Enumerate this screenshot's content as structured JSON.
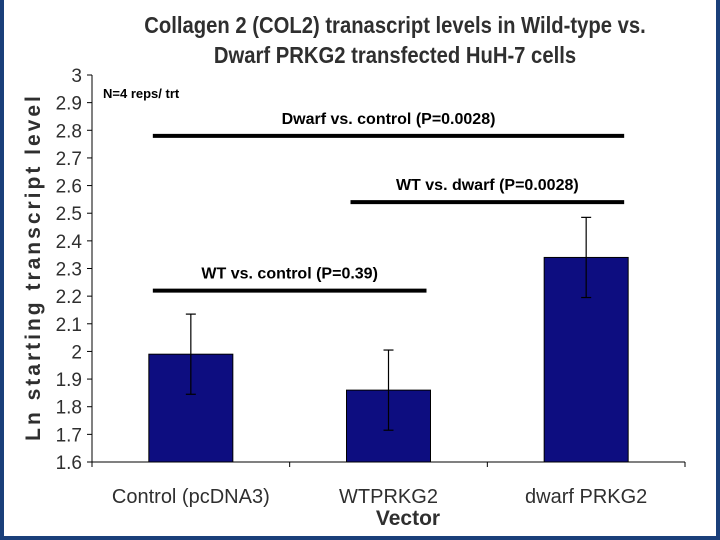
{
  "chart_data": {
    "type": "bar",
    "title": "Collagen 2 (COL2) tranascript levels in Wild-type vs. Dwarf PRKG2 transfected HuH-7 cells",
    "xlabel": "Vector",
    "ylabel": "Ln starting transcript level",
    "categories": [
      "Control (pcDNA3)",
      "WTPRKG2",
      "dwarf PRKG2"
    ],
    "values": [
      1.99,
      1.86,
      2.34
    ],
    "error": [
      0.145,
      0.145,
      0.145
    ],
    "ylim": [
      1.6,
      3.0
    ],
    "yticks": [
      "1.6",
      "1.7",
      "1.8",
      "1.9",
      "2",
      "2.1",
      "2.2",
      "2.3",
      "2.4",
      "2.5",
      "2.6",
      "2.7",
      "2.8",
      "2.9",
      "3"
    ],
    "grid": false,
    "bar_color": "#0d0d80",
    "note": "N=4 reps/ trt",
    "comparisons": [
      {
        "label": "WT vs. control (P=0.39)",
        "from": 0,
        "to": 1,
        "level": 2.22
      },
      {
        "label": "WT vs. dwarf (P=0.0028)",
        "from": 1,
        "to": 2,
        "level": 2.54
      },
      {
        "label": "Dwarf vs. control (P=0.0028)",
        "from": 0,
        "to": 2,
        "level": 2.78
      }
    ]
  }
}
